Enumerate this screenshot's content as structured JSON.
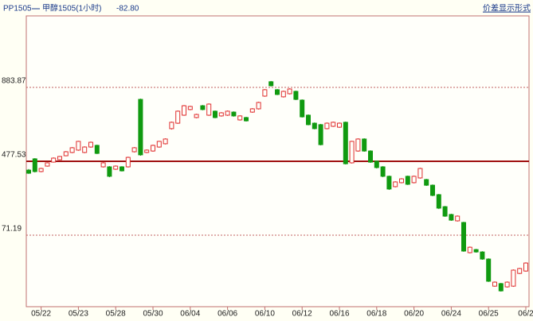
{
  "header": {
    "symbol": "PP1505",
    "name": "甲醇1505(1小时)",
    "spread": "-82.80",
    "mode_link": "价差显示形式"
  },
  "chart_data": {
    "type": "candlestick",
    "up_color": "#e03030",
    "down_color": "#109a10",
    "ylim": [
      -322,
      1277
    ],
    "yticks": [
      71.19,
      477.53,
      883.87
    ],
    "grid": true,
    "categories": [
      null,
      null,
      "05/22",
      null,
      null,
      null,
      null,
      null,
      "05/23",
      null,
      null,
      null,
      null,
      null,
      "05/28",
      null,
      null,
      null,
      null,
      null,
      "05/30",
      null,
      null,
      null,
      null,
      null,
      "06/04",
      null,
      null,
      null,
      null,
      null,
      "06/06",
      null,
      null,
      null,
      null,
      null,
      "06/10",
      null,
      null,
      null,
      null,
      null,
      "06/12",
      null,
      null,
      null,
      null,
      null,
      "06/16",
      null,
      null,
      null,
      null,
      null,
      "06/18",
      null,
      null,
      null,
      null,
      null,
      "06/20",
      null,
      null,
      null,
      null,
      null,
      "06/24",
      null,
      null,
      null,
      null,
      null,
      "06/25",
      null,
      null,
      null,
      null,
      null,
      "06/2"
    ],
    "open": [
      429,
      491,
      421,
      451,
      473,
      486,
      508,
      526,
      539,
      526,
      556,
      565,
      447,
      447,
      434,
      447,
      447,
      530,
      818,
      526,
      534,
      556,
      574,
      657,
      687,
      731,
      762,
      718,
      783,
      731,
      753,
      727,
      731,
      748,
      705,
      718,
      748,
      766,
      836,
      915,
      871,
      832,
      849,
      862,
      814,
      731,
      687,
      679,
      657,
      670,
      665,
      692,
      469,
      534,
      600,
      534,
      478,
      447,
      395,
      338,
      360,
      395,
      360,
      386,
      377,
      346,
      294,
      228,
      185,
      150,
      141,
      -25,
      -8,
      -21,
      -60,
      -209,
      -195,
      -213,
      -209,
      -139,
      -126
    ],
    "high": [
      435,
      495,
      442,
      472,
      499,
      507,
      534,
      556,
      590,
      560,
      586,
      569,
      473,
      451,
      455,
      451,
      503,
      556,
      822,
      543,
      569,
      590,
      604,
      696,
      757,
      787,
      783,
      739,
      787,
      796,
      757,
      748,
      757,
      752,
      731,
      722,
      770,
      805,
      875,
      919,
      875,
      866,
      879,
      866,
      818,
      735,
      691,
      683,
      691,
      696,
      691,
      696,
      590,
      604,
      604,
      538,
      482,
      451,
      399,
      368,
      385,
      399,
      399,
      442,
      381,
      350,
      298,
      232,
      189,
      180,
      145,
      9,
      -4,
      -17,
      -56,
      -183,
      -191,
      -183,
      -117,
      -108,
      -78
    ],
    "low": [
      408,
      416,
      417,
      448,
      470,
      483,
      505,
      522,
      535,
      522,
      552,
      517,
      443,
      390,
      430,
      421,
      443,
      526,
      508,
      522,
      530,
      552,
      570,
      652,
      683,
      727,
      758,
      714,
      758,
      727,
      714,
      723,
      727,
      723,
      701,
      696,
      744,
      762,
      832,
      889,
      841,
      828,
      845,
      814,
      718,
      675,
      653,
      565,
      653,
      666,
      661,
      460,
      465,
      530,
      530,
      469,
      438,
      390,
      320,
      334,
      356,
      347,
      356,
      382,
      342,
      285,
      215,
      172,
      150,
      146,
      -20,
      -29,
      -25,
      -64,
      -186,
      -213,
      -239,
      -217,
      -213,
      -143,
      -130
    ],
    "close": [
      412,
      421,
      438,
      469,
      495,
      504,
      530,
      552,
      587,
      556,
      582,
      521,
      469,
      395,
      451,
      425,
      499,
      552,
      513,
      539,
      565,
      587,
      600,
      692,
      753,
      783,
      779,
      735,
      762,
      792,
      718,
      744,
      753,
      727,
      727,
      700,
      766,
      801,
      871,
      893,
      845,
      862,
      875,
      818,
      722,
      679,
      657,
      569,
      687,
      692,
      687,
      464,
      587,
      600,
      534,
      473,
      443,
      395,
      325,
      364,
      381,
      351,
      395,
      438,
      346,
      290,
      220,
      176,
      154,
      176,
      -16,
      5,
      -21,
      -60,
      -182,
      -187,
      -235,
      -187,
      -121,
      -112,
      -82
    ]
  }
}
